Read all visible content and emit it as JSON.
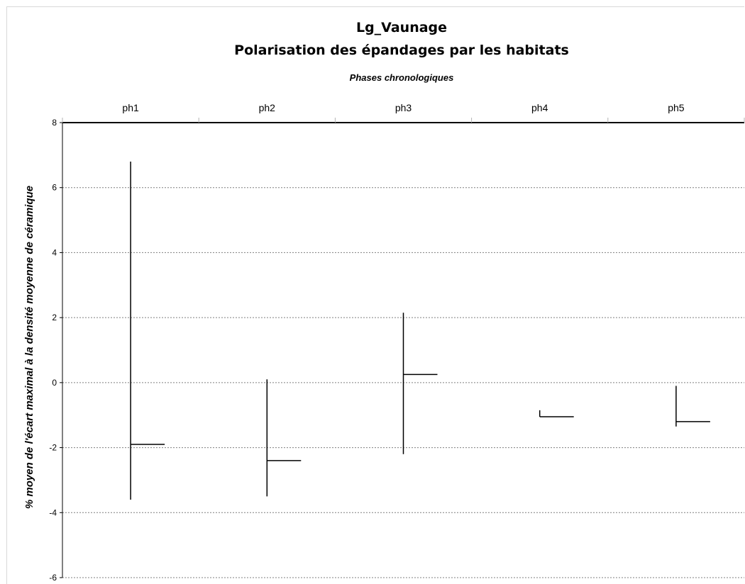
{
  "chart_data": {
    "type": "stock",
    "title": "Lg_Vaunage",
    "subtitle": "Polarisation des épandages par les habitats",
    "xlabel": "Phases chronologiques",
    "ylabel": "% moyen de l'écart maximal à la densité moyenne de céramique",
    "categories": [
      "ph1",
      "ph2",
      "ph3",
      "ph4",
      "ph5"
    ],
    "yticks": [
      -6,
      -4,
      -2,
      0,
      2,
      4,
      6,
      8
    ],
    "ylim": [
      -6,
      8
    ],
    "grid": true,
    "x_axis_position": "top",
    "series": [
      {
        "values": [
          {
            "high": 6.8,
            "low": -3.6,
            "close": -1.9
          },
          {
            "high": 0.1,
            "low": -3.5,
            "close": -2.4
          },
          {
            "high": 2.15,
            "low": -2.2,
            "close": 0.25
          },
          {
            "high": -0.85,
            "low": -1.05,
            "close": -1.05
          },
          {
            "high": -0.1,
            "low": -1.35,
            "close": -1.2
          }
        ]
      }
    ]
  }
}
